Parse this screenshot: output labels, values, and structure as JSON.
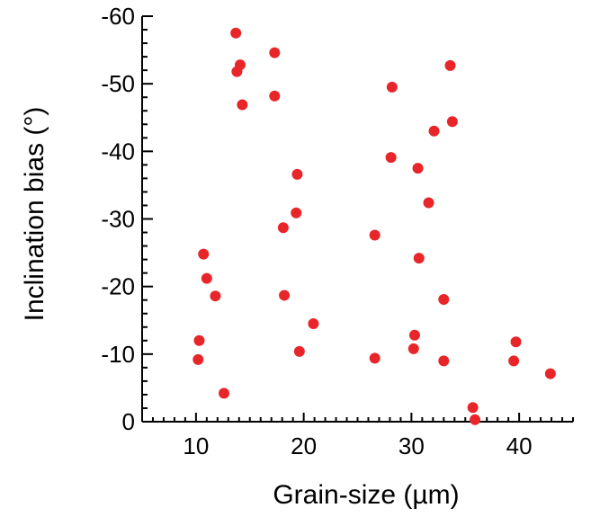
{
  "chart_data": {
    "type": "scatter",
    "title": "",
    "xlabel": "Grain-size (µm)",
    "ylabel": "Inclination bias (°)",
    "xlim": [
      5,
      45
    ],
    "ylim": [
      0,
      -60
    ],
    "y_axis_direction": "inverted (0 at bottom, -60 at top)",
    "x_ticks": [
      10,
      20,
      30,
      40
    ],
    "x_tick_labels": [
      "10",
      "20",
      "30",
      "40"
    ],
    "y_ticks": [
      0,
      -10,
      -20,
      -30,
      -40,
      -50,
      -60
    ],
    "y_tick_labels": [
      "0",
      "-10",
      "-20",
      "-30",
      "-40",
      "-50",
      "-60"
    ],
    "grid": false,
    "marker_color": "#e8262a",
    "points": [
      {
        "x": 13.7,
        "y": -57.5
      },
      {
        "x": 14.1,
        "y": -52.8
      },
      {
        "x": 13.8,
        "y": -51.8
      },
      {
        "x": 17.3,
        "y": -54.6
      },
      {
        "x": 17.3,
        "y": -48.2
      },
      {
        "x": 14.3,
        "y": -46.9
      },
      {
        "x": 19.4,
        "y": -36.6
      },
      {
        "x": 19.3,
        "y": -30.9
      },
      {
        "x": 18.1,
        "y": -28.7
      },
      {
        "x": 18.2,
        "y": -18.7
      },
      {
        "x": 20.9,
        "y": -14.5
      },
      {
        "x": 19.6,
        "y": -10.4
      },
      {
        "x": 10.7,
        "y": -24.8
      },
      {
        "x": 11.0,
        "y": -21.2
      },
      {
        "x": 11.8,
        "y": -18.6
      },
      {
        "x": 10.3,
        "y": -12.0
      },
      {
        "x": 10.2,
        "y": -9.2
      },
      {
        "x": 12.6,
        "y": -4.2
      },
      {
        "x": 28.2,
        "y": -49.5
      },
      {
        "x": 28.1,
        "y": -39.1
      },
      {
        "x": 30.6,
        "y": -37.5
      },
      {
        "x": 31.6,
        "y": -32.4
      },
      {
        "x": 26.6,
        "y": -27.6
      },
      {
        "x": 30.7,
        "y": -24.2
      },
      {
        "x": 30.3,
        "y": -12.8
      },
      {
        "x": 30.2,
        "y": -10.8
      },
      {
        "x": 26.6,
        "y": -9.4
      },
      {
        "x": 33.6,
        "y": -52.7
      },
      {
        "x": 33.8,
        "y": -44.4
      },
      {
        "x": 32.1,
        "y": -43.0
      },
      {
        "x": 33.0,
        "y": -18.1
      },
      {
        "x": 33.0,
        "y": -9.0
      },
      {
        "x": 35.7,
        "y": -2.1
      },
      {
        "x": 35.9,
        "y": -0.3
      },
      {
        "x": 39.7,
        "y": -11.8
      },
      {
        "x": 39.5,
        "y": -9.0
      },
      {
        "x": 42.9,
        "y": -7.1
      }
    ]
  }
}
